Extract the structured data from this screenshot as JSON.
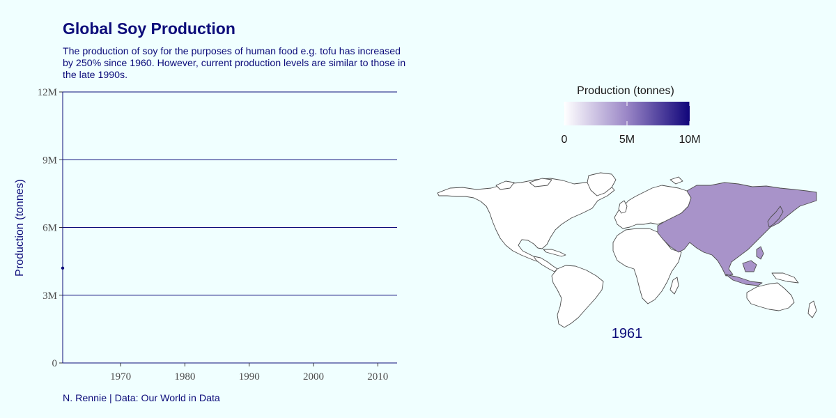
{
  "title": "Global Soy Production",
  "subtitle": "The production of soy for the purposes of human food e.g. tofu has increased by 250% since 1960. However, current production levels are similar to those in the late 1990s.",
  "caption": "N. Rennie | Data: Our World in Data",
  "colors": {
    "background": "#f0ffff",
    "text": "#0c0c7a",
    "gridline": "#0c0c7a",
    "point": "#0c0c7a",
    "scale_low": "#ffffff",
    "scale_high": "#10057a",
    "asia_fill": "#a893c9",
    "other_land_fill": "#ffffff",
    "border": "#4d4d4d"
  },
  "chart_data": [
    {
      "type": "scatter",
      "title": "Global Soy Production",
      "xlabel": "",
      "ylabel": "Production (tonnes)",
      "xlim": [
        1961,
        2013
      ],
      "ylim": [
        0,
        12000000
      ],
      "x_ticks": [
        1970,
        1980,
        1990,
        2000,
        2010
      ],
      "y_ticks": [
        0,
        3000000,
        6000000,
        9000000,
        12000000
      ],
      "y_tick_labels": [
        "0",
        "3M",
        "6M",
        "9M",
        "12M"
      ],
      "grid": "horizontal",
      "series": [
        {
          "points": [
            {
              "x": 1961,
              "y": 4200000
            }
          ]
        }
      ]
    },
    {
      "type": "choropleth-map",
      "legend_title": "Production (tonnes)",
      "legend_placement": "top",
      "scale_range": [
        0,
        10000000
      ],
      "legend_ticks": [
        0,
        5000000,
        10000000
      ],
      "legend_tick_labels": [
        "0",
        "5M",
        "10M"
      ],
      "year": "1961",
      "regions": [
        {
          "region": "Asia",
          "value": 4200000
        }
      ]
    }
  ]
}
